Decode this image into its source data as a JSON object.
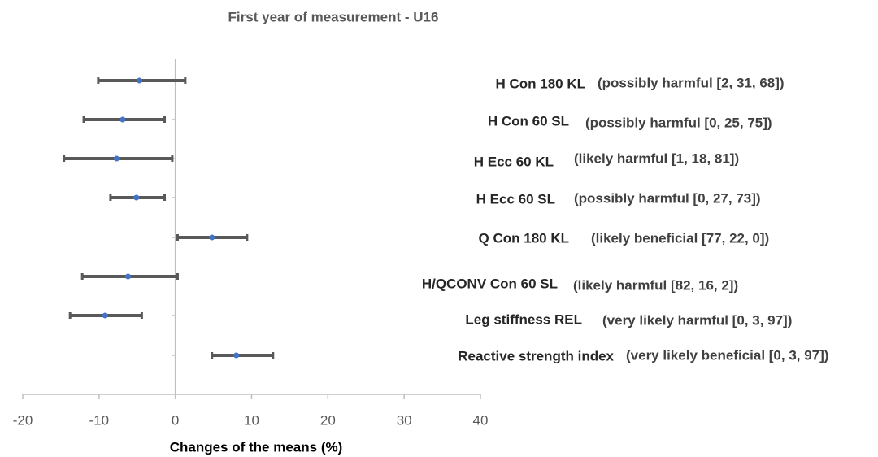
{
  "chart_data": {
    "type": "forest",
    "title": "First year of measurement - U16",
    "x_label": "Changes of the means (%)",
    "categories": [
      "H Con 180 KL",
      "H Con 60 SL",
      "H Ecc 60 KL",
      "H Ecc 60 SL",
      "Q Con 180 KL",
      "H/QCONV Con 60 SL",
      "Leg stiffness REL",
      "Reactive strength index"
    ],
    "annotations": [
      "(possibly harmful [2, 31, 68])",
      "(possibly harmful [0, 25, 75])",
      "(likely harmful [1, 18, 81])",
      "(possibly harmful [0, 27, 73])",
      "(likely beneficial [77, 22, 0])",
      "(likely harmful [82, 16, 2])",
      "(very likely harmful [0, 3, 97])",
      "(very likely beneficial [0, 3, 97])"
    ],
    "values": [
      -4.7,
      -6.9,
      -7.7,
      -5.1,
      4.8,
      -6.2,
      -9.2,
      8.0
    ],
    "lower": [
      -10.1,
      -12.0,
      -14.6,
      -8.5,
      0.3,
      -12.2,
      -13.8,
      4.8
    ],
    "upper": [
      1.3,
      -1.4,
      -0.4,
      -1.4,
      9.4,
      0.3,
      -4.4,
      12.8
    ],
    "color": "#4472c4",
    "bar_color": "#595959",
    "xlim": [
      -20,
      40
    ],
    "xticks": [
      -20,
      -10,
      0,
      10,
      20,
      30,
      40
    ]
  }
}
